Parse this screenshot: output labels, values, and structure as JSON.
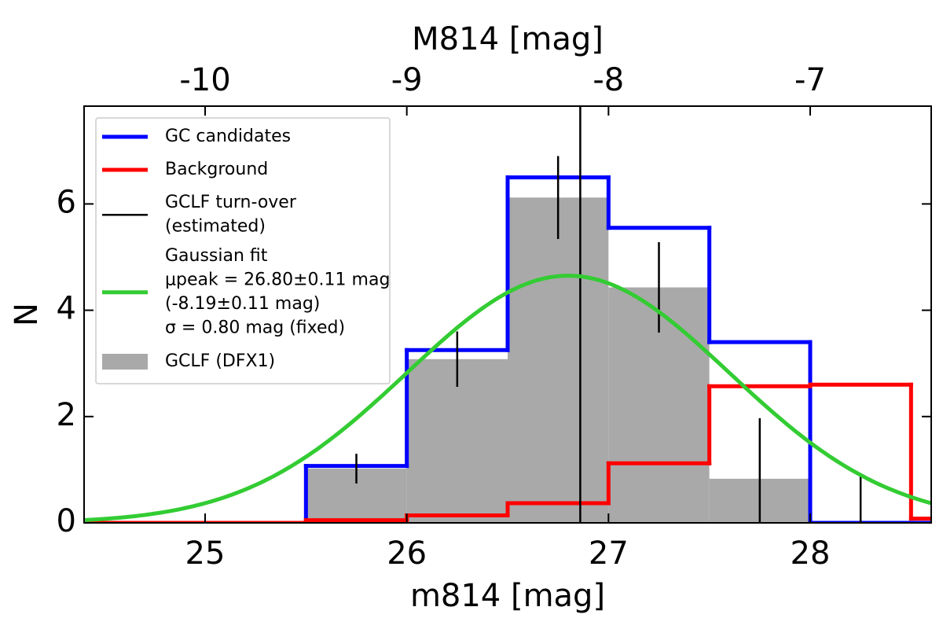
{
  "chart_data": {
    "type": "histogram",
    "xlabel": "m814 [mag]",
    "ylabel": "N",
    "x2label": "M814 [mag]",
    "xlim": [
      24.4,
      28.6
    ],
    "xticks": [
      25,
      26,
      27,
      28
    ],
    "x2lim": [
      -10.6,
      -6.4
    ],
    "x2ticks": [
      -10,
      -9,
      -8,
      -7
    ],
    "ylim": [
      0,
      7.84
    ],
    "yticks": [
      0,
      2,
      4,
      6
    ],
    "legend": "upper left",
    "bins": [
      24,
      24.5,
      25,
      25.5,
      26,
      26.5,
      27,
      27.5,
      28,
      28.5,
      29
    ],
    "series": [
      {
        "name": [
          "GC candidates"
        ],
        "style": "step",
        "color": "#0000ff",
        "values": [
          0,
          0,
          0,
          1.07,
          3.25,
          6.5,
          5.55,
          3.4,
          0,
          0
        ]
      },
      {
        "name": [
          "Background"
        ],
        "style": "step",
        "color": "#ff0000",
        "values": [
          0,
          0,
          0,
          0.05,
          0.14,
          0.37,
          1.12,
          2.57,
          2.6,
          0.08
        ]
      },
      {
        "name": [
          "GCLF (DFX1)"
        ],
        "style": "bar",
        "color": "#a9a9a9",
        "values": [
          0,
          0,
          0,
          1.02,
          3.08,
          6.12,
          4.43,
          0.83,
          0,
          0
        ],
        "errors": [
          null,
          null,
          null,
          0.28,
          0.52,
          0.78,
          0.85,
          1.14,
          0.93,
          null
        ]
      }
    ],
    "turnover": {
      "name": [
        "GCLF turn-over",
        "(estimated)"
      ],
      "x": 26.86,
      "color": "#000000"
    },
    "gaussian": {
      "name": [
        "Gaussian fit",
        "μpeak = 26.80±0.11 mag",
        "(-8.19±0.11 mag)",
        "σ = 0.80 mag (fixed)"
      ],
      "mu": 26.8,
      "sigma": 0.8,
      "amplitude": 4.65,
      "color": "#33cc33"
    }
  }
}
